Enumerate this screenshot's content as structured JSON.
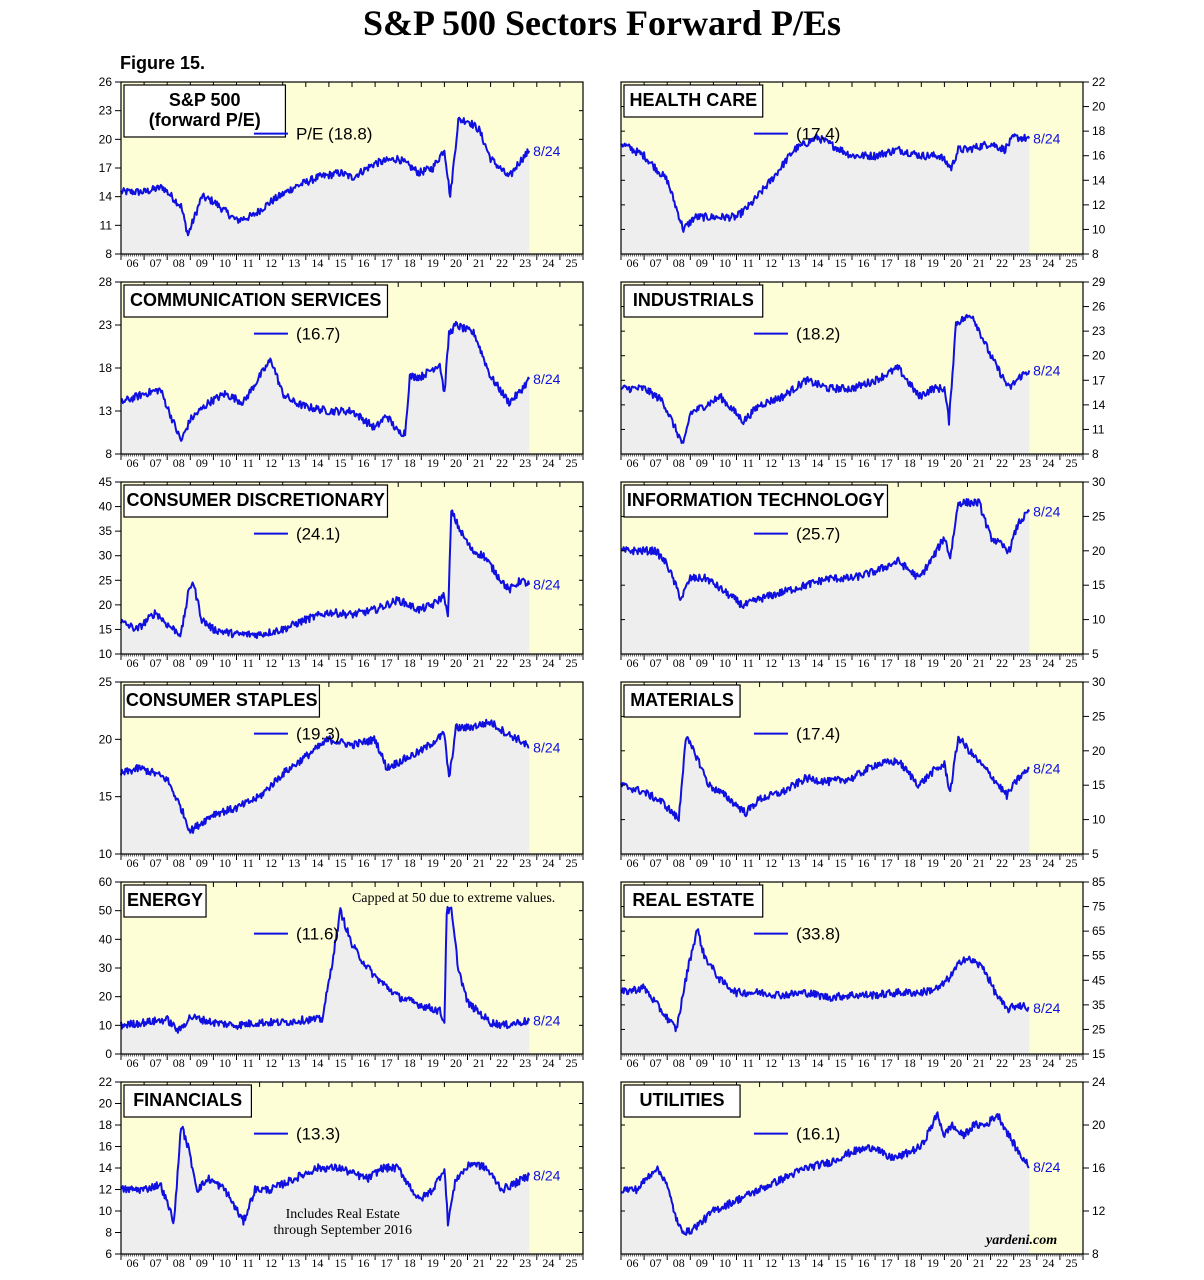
{
  "page": {
    "title": "S&P 500 Sectors Forward P/Es",
    "figure": "Figure 15.",
    "source": "yardeni.com"
  },
  "colors": {
    "line": "#1010e0",
    "panel_bg": "#fdfdd6",
    "fill": "#eeeeee",
    "future_bg": "#fdfdd6"
  },
  "x_tick_labels": [
    "06",
    "07",
    "08",
    "09",
    "10",
    "11",
    "12",
    "13",
    "14",
    "15",
    "16",
    "17",
    "18",
    "19",
    "20",
    "21",
    "22",
    "23",
    "24",
    "25"
  ],
  "chart_data": [
    {
      "type": "line",
      "title": "S&P 500\n(forward P/E)",
      "legend": "P/E (18.8)",
      "end_label": "8/24",
      "axis_side": "left",
      "ylim": [
        8,
        26
      ],
      "yticks": [
        8,
        11,
        14,
        17,
        20,
        23,
        26
      ],
      "x": [
        2006,
        2007,
        2007.8,
        2008.6,
        2008.9,
        2009.5,
        2010,
        2010.5,
        2011,
        2011.7,
        2012.5,
        2013.5,
        2014.5,
        2015.5,
        2016,
        2017,
        2018,
        2018.9,
        2019.5,
        2020,
        2020.25,
        2020.6,
        2021,
        2021.5,
        2022,
        2022.8,
        2023.2,
        2023.67
      ],
      "values": [
        14.5,
        14.5,
        15,
        13,
        10,
        14,
        13.5,
        12.5,
        11.5,
        12,
        13.5,
        15,
        16,
        16.5,
        16,
        17.5,
        18,
        16.5,
        17,
        19,
        14,
        22,
        22,
        21,
        18,
        16,
        17.5,
        18.8
      ]
    },
    {
      "type": "line",
      "title": "HEALTH CARE",
      "legend": "(17.4)",
      "end_label": "8/24",
      "axis_side": "right",
      "ylim": [
        8,
        22
      ],
      "yticks": [
        8,
        10,
        12,
        14,
        16,
        18,
        20,
        22
      ],
      "x": [
        2006,
        2007,
        2007.5,
        2008,
        2008.7,
        2009.2,
        2010,
        2011,
        2011.6,
        2012.5,
        2013.5,
        2014.5,
        2015.5,
        2016,
        2017,
        2018,
        2019,
        2019.8,
        2020.3,
        2020.6,
        2021,
        2022,
        2022.6,
        2023,
        2023.67
      ],
      "values": [
        17,
        16,
        15,
        14,
        10,
        11,
        11,
        11,
        12,
        14,
        16.5,
        17.5,
        16.5,
        16,
        16,
        16.5,
        16,
        16,
        15,
        16.5,
        16.5,
        17,
        16.5,
        17.5,
        17.4
      ]
    },
    {
      "type": "line",
      "title": "COMMUNICATION SERVICES",
      "legend": "(16.7)",
      "end_label": "8/24",
      "axis_side": "left",
      "ylim": [
        8,
        28
      ],
      "yticks": [
        8,
        13,
        18,
        23,
        28
      ],
      "x": [
        2006,
        2007,
        2007.7,
        2008.6,
        2009,
        2009.8,
        2010.5,
        2011.3,
        2012,
        2012.5,
        2013,
        2013.5,
        2014,
        2015,
        2016,
        2017,
        2017.5,
        2018,
        2018.3,
        2018.5,
        2019,
        2019.8,
        2020,
        2020.2,
        2020.5,
        2021.3,
        2022,
        2022.8,
        2023.2,
        2023.67
      ],
      "values": [
        14,
        15,
        15.5,
        9.5,
        12,
        14,
        15,
        14,
        17,
        19,
        15,
        14,
        13.5,
        13,
        13,
        11,
        12.5,
        10.5,
        10.5,
        17,
        17,
        18.5,
        15,
        22,
        23,
        22,
        17,
        14,
        15,
        16.7
      ]
    },
    {
      "type": "line",
      "title": "INDUSTRIALS",
      "legend": "(18.2)",
      "end_label": "8/24",
      "axis_side": "right",
      "ylim": [
        8,
        29
      ],
      "yticks": [
        8,
        11,
        14,
        17,
        20,
        23,
        26,
        29
      ],
      "x": [
        2006,
        2007,
        2007.8,
        2008.7,
        2009,
        2009.7,
        2010.3,
        2011.3,
        2012,
        2013,
        2014,
        2015,
        2016,
        2017,
        2018,
        2018.9,
        2019.5,
        2020,
        2020.2,
        2020.5,
        2021.2,
        2022,
        2022.8,
        2023.3,
        2023.67
      ],
      "values": [
        16,
        16,
        14.5,
        9,
        13,
        14,
        15,
        12,
        14,
        15,
        17,
        16,
        16,
        17,
        18.5,
        15,
        16,
        16,
        12,
        24,
        25,
        20,
        16,
        17.5,
        18.2
      ]
    },
    {
      "type": "line",
      "title": "CONSUMER DISCRETIONARY",
      "legend": "(24.1)",
      "end_label": "8/24",
      "axis_side": "left",
      "ylim": [
        10,
        45
      ],
      "yticks": [
        10,
        15,
        20,
        25,
        30,
        35,
        40,
        45
      ],
      "x": [
        2006,
        2006.7,
        2007.5,
        2008,
        2008.6,
        2008.9,
        2009.1,
        2009.5,
        2010,
        2011,
        2012,
        2013,
        2014,
        2015,
        2016,
        2017,
        2018,
        2018.9,
        2019.5,
        2020,
        2020.15,
        2020.3,
        2020.7,
        2021.2,
        2021.7,
        2022.3,
        2022.8,
        2023.3,
        2023.67
      ],
      "values": [
        16.5,
        15,
        18.5,
        16,
        14,
        22,
        25,
        17,
        15,
        14,
        14,
        15,
        17,
        18.5,
        18,
        19,
        21,
        19,
        20,
        22,
        17,
        39,
        35,
        31,
        30,
        26,
        23,
        25,
        24.1
      ]
    },
    {
      "type": "line",
      "title": "INFORMATION TECHNOLOGY",
      "legend": "(25.7)",
      "end_label": "8/24",
      "axis_side": "right",
      "ylim": [
        5,
        30
      ],
      "yticks": [
        5,
        10,
        15,
        20,
        25,
        30
      ],
      "x": [
        2006,
        2006.8,
        2007.5,
        2008,
        2008.6,
        2009,
        2009.7,
        2010.5,
        2011.3,
        2012,
        2013,
        2014,
        2015,
        2016,
        2017,
        2018,
        2018.9,
        2019.5,
        2020,
        2020.25,
        2020.6,
        2021,
        2021.5,
        2022,
        2022.8,
        2023.2,
        2023.67
      ],
      "values": [
        20,
        20,
        20,
        18,
        13,
        16,
        16,
        14,
        12,
        13,
        14,
        15,
        16,
        16,
        17,
        18.5,
        16,
        19,
        22,
        19,
        27,
        27,
        27,
        22,
        20,
        24,
        25.7
      ]
    },
    {
      "type": "line",
      "title": "CONSUMER STAPLES",
      "legend": "(19.3)",
      "end_label": "8/24",
      "axis_side": "left",
      "ylim": [
        10,
        25
      ],
      "yticks": [
        10,
        15,
        20,
        25
      ],
      "x": [
        2006,
        2006.8,
        2007.5,
        2008,
        2008.6,
        2009,
        2010,
        2011,
        2012,
        2013,
        2014,
        2015,
        2016,
        2017,
        2017.5,
        2018,
        2019,
        2020,
        2020.2,
        2020.5,
        2021,
        2022,
        2022.7,
        2023.2,
        2023.67
      ],
      "values": [
        17,
        17.5,
        17,
        16.5,
        14,
        12,
        13.5,
        14,
        15,
        17,
        18.5,
        20,
        19.5,
        20,
        17.5,
        18,
        19,
        20.5,
        16.5,
        21,
        21,
        21.5,
        20.5,
        20,
        19.3
      ]
    },
    {
      "type": "line",
      "title": "MATERIALS",
      "legend": "(17.4)",
      "end_label": "8/24",
      "axis_side": "right",
      "ylim": [
        5,
        30
      ],
      "yticks": [
        5,
        10,
        15,
        20,
        25,
        30
      ],
      "x": [
        2006,
        2007,
        2007.8,
        2008.5,
        2008.8,
        2009.3,
        2009.8,
        2010.5,
        2011.4,
        2012,
        2013,
        2014,
        2015,
        2016,
        2017,
        2018,
        2018.9,
        2019.5,
        2020,
        2020.25,
        2020.6,
        2021.2,
        2022,
        2022.7,
        2023.2,
        2023.67
      ],
      "values": [
        15,
        14,
        12.5,
        10,
        22,
        19,
        15,
        13.5,
        11,
        13,
        14,
        16,
        15.5,
        16,
        18,
        18.5,
        15,
        17,
        18,
        14,
        22,
        19.5,
        16.5,
        13.5,
        16,
        17.4
      ]
    },
    {
      "type": "line",
      "title": "ENERGY",
      "legend": "(11.6)",
      "end_label": "8/24",
      "axis_side": "left",
      "annotation": "Capped at 50 due to extreme values.",
      "ylim": [
        0,
        60
      ],
      "yticks": [
        0,
        10,
        20,
        30,
        40,
        50,
        60
      ],
      "x": [
        2006,
        2007,
        2008,
        2008.5,
        2009,
        2010,
        2011,
        2012,
        2013,
        2014,
        2014.7,
        2015,
        2015.5,
        2016,
        2016.5,
        2017,
        2018,
        2019,
        2019.8,
        2020,
        2020.1,
        2020.3,
        2020.6,
        2021,
        2022,
        2022.6,
        2023.2,
        2023.67
      ],
      "values": [
        10,
        11,
        12,
        8,
        13,
        11,
        10,
        11,
        11,
        12,
        12,
        25,
        50,
        38,
        32,
        27,
        20,
        17,
        15,
        11,
        50,
        50,
        30,
        18,
        11,
        10,
        11,
        11.6
      ]
    },
    {
      "type": "line",
      "title": "REAL ESTATE",
      "legend": "(33.8)",
      "end_label": "8/24",
      "axis_side": "right",
      "ylim": [
        15,
        85
      ],
      "yticks": [
        15,
        25,
        35,
        45,
        55,
        65,
        75,
        85
      ],
      "x": [
        2006,
        2007,
        2007.8,
        2008.4,
        2008.9,
        2009.3,
        2009.6,
        2010.3,
        2011,
        2012,
        2013,
        2014,
        2015,
        2016,
        2017,
        2018,
        2019,
        2019.8,
        2020.3,
        2020.8,
        2021.2,
        2021.7,
        2022.2,
        2022.7,
        2023.2,
        2023.67
      ],
      "values": [
        40,
        42,
        32,
        25,
        50,
        66,
        55,
        45,
        40,
        40,
        39,
        40,
        38,
        39,
        39,
        40,
        40,
        42,
        47,
        54,
        53,
        50,
        40,
        33,
        35,
        33.8
      ]
    },
    {
      "type": "line",
      "title": "FINANCIALS",
      "legend": "(13.3)",
      "end_label": "8/24",
      "axis_side": "left",
      "annotation": "Includes Real Estate\nthrough September 2016",
      "ylim": [
        6,
        22
      ],
      "yticks": [
        6,
        8,
        10,
        12,
        14,
        16,
        18,
        20,
        22
      ],
      "x": [
        2006,
        2007,
        2007.7,
        2008.3,
        2008.6,
        2008.9,
        2009.3,
        2009.8,
        2010.5,
        2011.3,
        2011.8,
        2012.5,
        2013.5,
        2014.5,
        2015.5,
        2016,
        2016.7,
        2017.3,
        2018,
        2018.9,
        2019.5,
        2020,
        2020.15,
        2020.5,
        2021.2,
        2021.8,
        2022.5,
        2023,
        2023.67
      ],
      "values": [
        12,
        12,
        12.5,
        9,
        18,
        16,
        12,
        13,
        12,
        9,
        12,
        12,
        13,
        14,
        14,
        13.5,
        13,
        14,
        14,
        11,
        12,
        14,
        9,
        13,
        14.5,
        14,
        12,
        12.5,
        13.3
      ]
    },
    {
      "type": "line",
      "title": "UTILITIES",
      "legend": "(16.1)",
      "end_label": "8/24",
      "axis_side": "right",
      "ylim": [
        8,
        24
      ],
      "yticks": [
        8,
        12,
        16,
        20,
        24
      ],
      "x": [
        2006,
        2006.7,
        2007.5,
        2007.9,
        2008.5,
        2008.9,
        2009.5,
        2010,
        2011,
        2012,
        2013,
        2014,
        2015,
        2016,
        2017,
        2017.5,
        2018,
        2019,
        2019.7,
        2020,
        2020.3,
        2020.8,
        2021.3,
        2021.8,
        2022.3,
        2022.8,
        2023.2,
        2023.67
      ],
      "values": [
        14,
        14,
        16,
        15,
        10.5,
        10,
        11,
        12,
        13,
        14,
        15,
        16,
        16.5,
        17.5,
        18,
        17,
        17,
        18,
        21,
        19,
        20,
        19,
        20,
        20,
        21,
        19,
        17.5,
        16.1
      ]
    }
  ]
}
